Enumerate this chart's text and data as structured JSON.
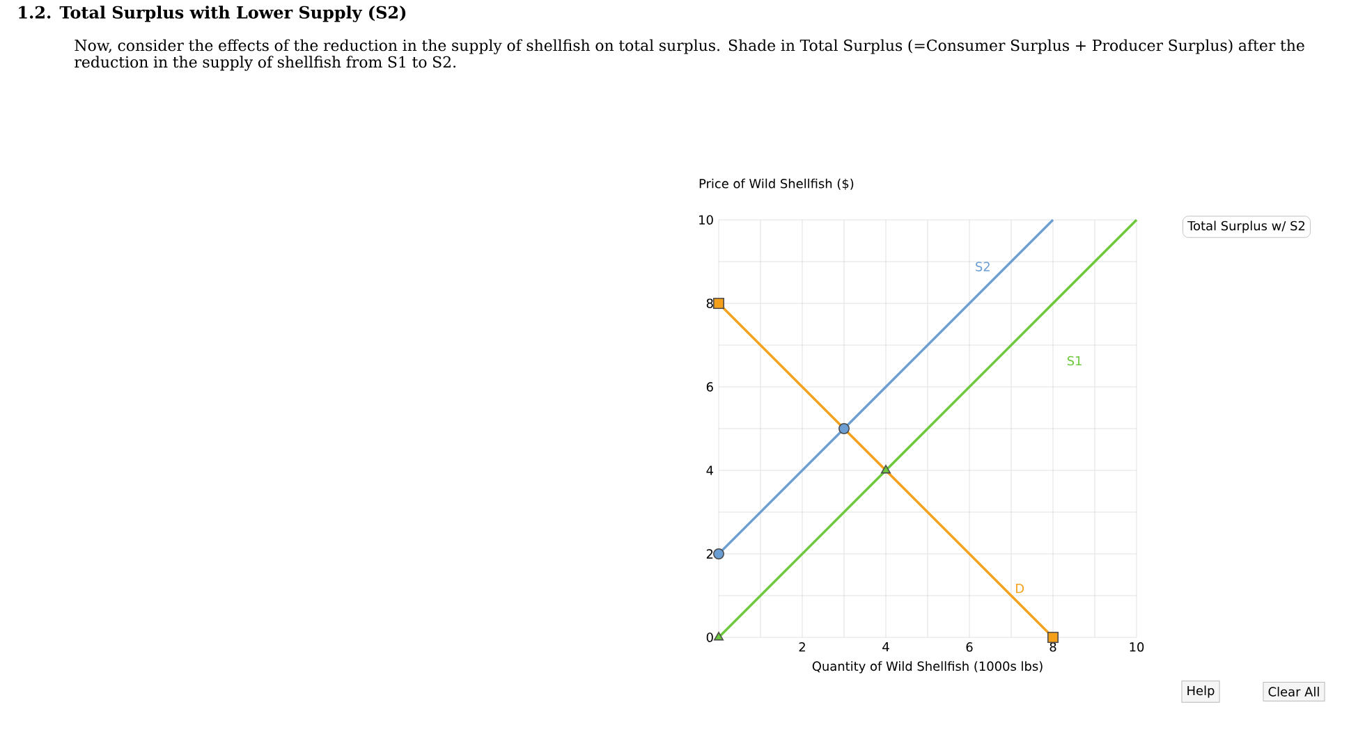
{
  "chart_data": {
    "type": "line",
    "title": "1.2. Total Surplus with Lower Supply (S2)",
    "subtitle": "Now, consider the effects of the reduction in the supply of shellfish on total surplus. Shade in Total Surplus (=Consumer Surplus + Producer Surplus) after the reduction in the supply of shellfish from S1 to S2.",
    "xlabel": "Quantity of Wild Shellfish (1000s lbs)",
    "ylabel": "Price of Wild Shellfish ($)",
    "xlim": [
      0,
      10
    ],
    "ylim": [
      0,
      10
    ],
    "xticks": [
      {
        "value": 0,
        "label": null
      },
      {
        "value": 1,
        "label": null
      },
      2,
      {
        "value": 3,
        "label": null
      },
      4,
      {
        "value": 5,
        "label": null
      },
      6,
      {
        "value": 7,
        "label": null
      },
      8,
      {
        "value": 9,
        "label": null
      },
      10
    ],
    "yticks": [
      0,
      {
        "value": 1,
        "label": null
      },
      2,
      {
        "value": 3,
        "label": null
      },
      4,
      {
        "value": 5,
        "label": null
      },
      6,
      {
        "value": 7,
        "label": null
      },
      8,
      {
        "value": 9,
        "label": null
      },
      10
    ],
    "grid": true,
    "line_style": "solid",
    "annotations": [
      "Total Surplus w/ S2",
      "Help",
      "Clear All"
    ],
    "series": [
      {
        "name": "S2",
        "color": "#6b9fd3",
        "x": [
          0,
          8
        ],
        "values": [
          2,
          10
        ]
      },
      {
        "name": "S1",
        "color": "#6cc93c",
        "x": [
          0,
          10
        ],
        "values": [
          0,
          10
        ]
      },
      {
        "name": "D",
        "color": "#f5a01a",
        "x": [
          0,
          8
        ],
        "values": [
          8,
          0
        ]
      },
      {
        "type": "scatter",
        "marker": "circle",
        "color": "#6b9fd3",
        "x": [
          0,
          3
        ],
        "values": [
          2,
          5
        ]
      },
      {
        "type": "scatter",
        "marker": "triangle",
        "color": "#6cc93c",
        "x": [
          0,
          4
        ],
        "values": [
          0,
          4
        ]
      },
      {
        "type": "scatter",
        "marker": "square",
        "color": "#f5a01a",
        "x": [
          0,
          8
        ],
        "values": [
          8,
          0
        ]
      }
    ]
  }
}
